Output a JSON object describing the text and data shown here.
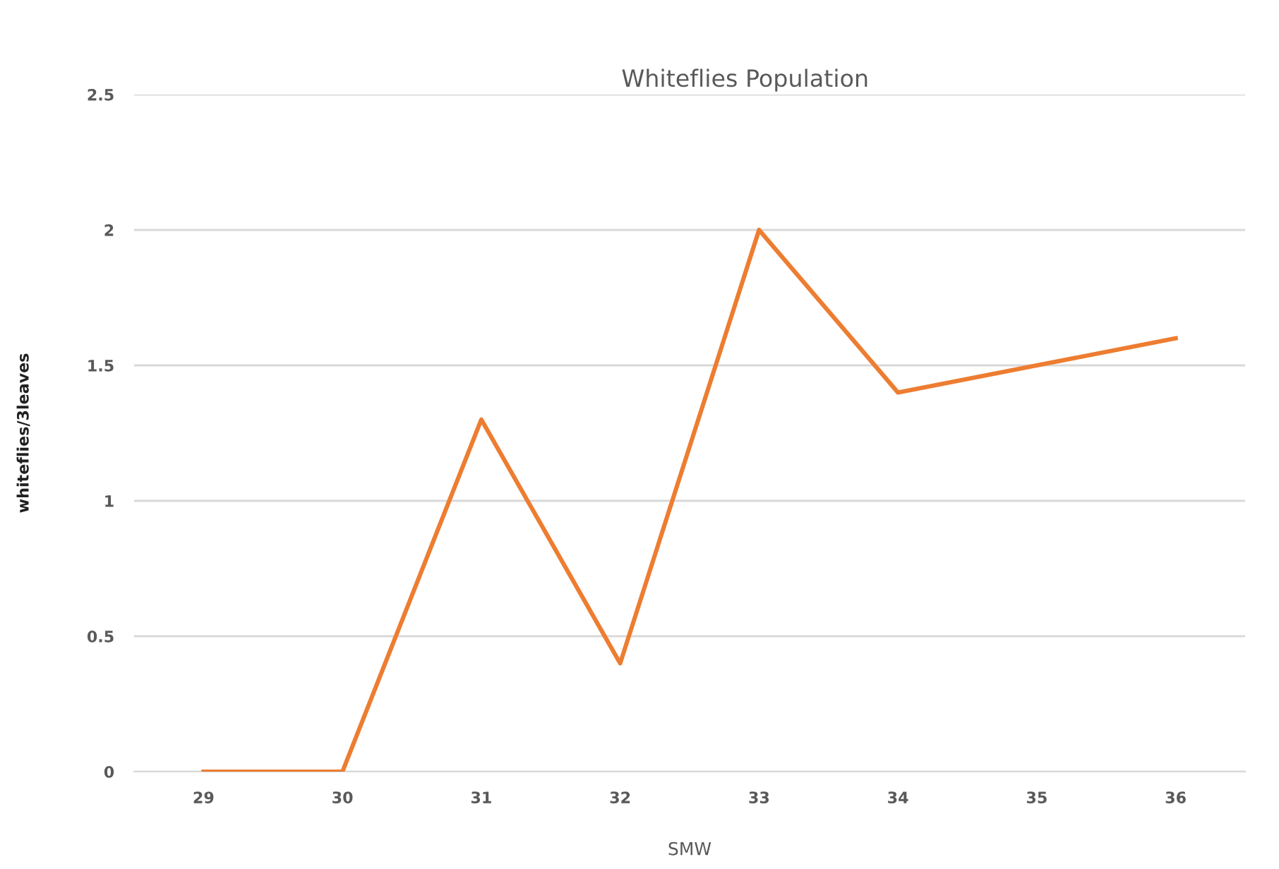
{
  "chart_data": {
    "type": "line",
    "title": "Whiteflies Population",
    "xlabel": "SMW",
    "ylabel": "whiteflies/3leaves",
    "categories": [
      "29",
      "30",
      "31",
      "32",
      "33",
      "34",
      "35",
      "36"
    ],
    "series": [
      {
        "color": "#ed7d31",
        "values": [
          0,
          0,
          1.3,
          0.4,
          2.0,
          1.4,
          1.5,
          1.6
        ]
      }
    ],
    "ylim": [
      0,
      2.5
    ],
    "yticks": [
      0,
      0.5,
      1,
      1.5,
      2,
      2.5
    ],
    "grid": "y",
    "marker": "none",
    "line_style": "solid"
  }
}
